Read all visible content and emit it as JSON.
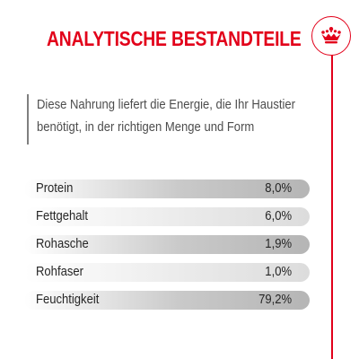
{
  "header": {
    "title": "ANALYTISCHE BESTANDTEILE",
    "accent_color": "#e2001a",
    "badge_icon": "crown-icon"
  },
  "intro": {
    "lines": [
      "Diese Nahrung liefert die Energie, die Ihr Haustier",
      "benötigt, in der richtigen Menge und Form"
    ]
  },
  "nutrients": [
    {
      "label": "Protein",
      "value": "8,0%",
      "shade": "dark"
    },
    {
      "label": "Fettgehalt",
      "value": "6,0%",
      "shade": "light"
    },
    {
      "label": "Rohasche",
      "value": "1,9%",
      "shade": "dark"
    },
    {
      "label": "Rohfaser",
      "value": "1,0%",
      "shade": "light"
    },
    {
      "label": "Feuchtigkeit",
      "value": "79,2%",
      "shade": "dark"
    }
  ]
}
